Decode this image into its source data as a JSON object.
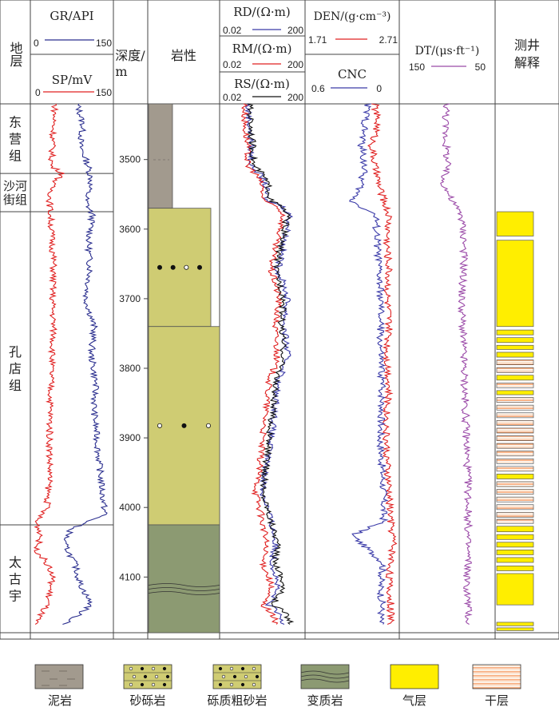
{
  "header": {
    "formation": "地层",
    "gr": {
      "label": "GR/API",
      "min": "0",
      "max": "150"
    },
    "sp": {
      "label": "SP/mV",
      "min": "0",
      "max": "150"
    },
    "depth": {
      "line1": "深度/",
      "line2": "m"
    },
    "lithology": "岩性",
    "rd": {
      "label": "RD/(Ω·m)",
      "min": "0.02",
      "max": "200"
    },
    "rm": {
      "label": "RM/(Ω·m)",
      "min": "0.02",
      "max": "200"
    },
    "rs": {
      "label": "RS/(Ω·m)",
      "min": "0.02",
      "max": "200"
    },
    "den": {
      "label": "DEN/(g·cm⁻³)",
      "min": "1.71",
      "max": "2.71"
    },
    "cnc": {
      "label": "CNC",
      "min": "0.6",
      "max": "0"
    },
    "dt": {
      "label": "DT/(μs·ft⁻¹)",
      "min": "150",
      "max": "50"
    },
    "interp": {
      "line1": "测井",
      "line2": "解释"
    }
  },
  "formations": [
    {
      "name": "东营组",
      "top": 3420,
      "base": 3520
    },
    {
      "name": "沙河街组",
      "top": 3520,
      "base": 3575
    },
    {
      "name": "孔店组",
      "top": 3575,
      "base": 4025
    },
    {
      "name": "太古宇",
      "top": 4025,
      "base": 4180
    }
  ],
  "depth_ticks": [
    "3500",
    "3600",
    "3700",
    "3800",
    "3900",
    "4000",
    "4100"
  ],
  "lithology": [
    {
      "type": "泥岩",
      "top": 3420,
      "base": 3570
    },
    {
      "type": "砂砾岩",
      "top": 3570,
      "base": 3740,
      "dots": [
        "filled",
        "filled",
        "hollow",
        "filled"
      ]
    },
    {
      "type": "砾质粗砂岩",
      "top": 3740,
      "base": 4025,
      "dots": [
        "hollow",
        "filled",
        "hollow"
      ]
    },
    {
      "type": "变质岩",
      "top": 4025,
      "base": 4180
    }
  ],
  "interpretation": [
    {
      "type": "气层",
      "top": 3575,
      "base": 3610
    },
    {
      "type": "气层",
      "top": 3616,
      "base": 3740
    },
    {
      "type": "气层",
      "top": 3745,
      "base": 3752
    },
    {
      "type": "气层",
      "top": 3756,
      "base": 3763
    },
    {
      "type": "气层",
      "top": 3767,
      "base": 3773
    },
    {
      "type": "气层",
      "top": 3777,
      "base": 3784
    },
    {
      "type": "干层",
      "top": 3788,
      "base": 3795
    },
    {
      "type": "干层",
      "top": 3799,
      "base": 3806
    },
    {
      "type": "气层",
      "top": 3810,
      "base": 3817
    },
    {
      "type": "干层",
      "top": 3821,
      "base": 3828
    },
    {
      "type": "气层",
      "top": 3832,
      "base": 3838
    },
    {
      "type": "干层",
      "top": 3842,
      "base": 3849
    },
    {
      "type": "干层",
      "top": 3853,
      "base": 3860
    },
    {
      "type": "干层",
      "top": 3864,
      "base": 3871
    },
    {
      "type": "干层",
      "top": 3875,
      "base": 3882
    },
    {
      "type": "干层",
      "top": 3886,
      "base": 3893
    },
    {
      "type": "干层",
      "top": 3897,
      "base": 3904
    },
    {
      "type": "干层",
      "top": 3908,
      "base": 3915
    },
    {
      "type": "干层",
      "top": 3919,
      "base": 3926
    },
    {
      "type": "干层",
      "top": 3930,
      "base": 3937
    },
    {
      "type": "干层",
      "top": 3941,
      "base": 3948
    },
    {
      "type": "气层",
      "top": 3952,
      "base": 3959
    },
    {
      "type": "干层",
      "top": 3963,
      "base": 3970
    },
    {
      "type": "干层",
      "top": 3974,
      "base": 3981
    },
    {
      "type": "干层",
      "top": 3985,
      "base": 3992
    },
    {
      "type": "干层",
      "top": 3996,
      "base": 4003
    },
    {
      "type": "干层",
      "top": 4007,
      "base": 4014
    },
    {
      "type": "干层",
      "top": 4017,
      "base": 4023
    },
    {
      "type": "气层",
      "top": 4027,
      "base": 4035
    },
    {
      "type": "气层",
      "top": 4039,
      "base": 4046
    },
    {
      "type": "气层",
      "top": 4050,
      "base": 4057
    },
    {
      "type": "气层",
      "top": 4061,
      "base": 4068
    },
    {
      "type": "气层",
      "top": 4072,
      "base": 4079
    },
    {
      "type": "气层",
      "top": 4084,
      "base": 4091
    },
    {
      "type": "气层",
      "top": 4095,
      "base": 4140
    },
    {
      "type": "气层",
      "top": 4165,
      "base": 4170
    },
    {
      "type": "气层",
      "top": 4173,
      "base": 4177
    }
  ],
  "legend": [
    {
      "label": "泥岩",
      "pattern": "mudstone"
    },
    {
      "label": "砂砾岩",
      "pattern": "sandy-conglomerate"
    },
    {
      "label": "砾质粗砂岩",
      "pattern": "pebbly-sandstone"
    },
    {
      "label": "变质岩",
      "pattern": "metamorphic"
    },
    {
      "label": "气层",
      "pattern": "gas"
    },
    {
      "label": "干层",
      "pattern": "dry"
    }
  ],
  "colors": {
    "gr": "#2b2f8f",
    "sp": "#e02020",
    "rd": "#3a3aa8",
    "rm": "#e02020",
    "rs": "#111111",
    "den": "#e02020",
    "cnc": "#3a3aa8",
    "dt": "#9b4aa8",
    "mudstone": "#a29a8e",
    "sandy": "#cfcc73",
    "metamorphic": "#8c9a72",
    "gas": "#ffee00",
    "dry": "#f6a06a"
  },
  "chart_data": {
    "type": "line",
    "depth_range": [
      3420,
      4180
    ],
    "curves": [
      {
        "name": "GR",
        "points": [
          [
            3420,
            85
          ],
          [
            3450,
            95
          ],
          [
            3480,
            90
          ],
          [
            3510,
            105
          ],
          [
            3530,
            110
          ],
          [
            3560,
            100
          ],
          [
            3580,
            112
          ],
          [
            3620,
            105
          ],
          [
            3660,
            108
          ],
          [
            3700,
            100
          ],
          [
            3740,
            115
          ],
          [
            3780,
            110
          ],
          [
            3820,
            118
          ],
          [
            3860,
            115
          ],
          [
            3900,
            120
          ],
          [
            3940,
            125
          ],
          [
            3980,
            130
          ],
          [
            4010,
            135
          ],
          [
            4030,
            75
          ],
          [
            4050,
            60
          ],
          [
            4080,
            80
          ],
          [
            4110,
            90
          ],
          [
            4140,
            110
          ],
          [
            4170,
            60
          ]
        ]
      },
      {
        "name": "SP",
        "points": [
          [
            3420,
            45
          ],
          [
            3450,
            42
          ],
          [
            3480,
            40
          ],
          [
            3510,
            38
          ],
          [
            3520,
            60
          ],
          [
            3535,
            40
          ],
          [
            3560,
            35
          ],
          [
            3600,
            38
          ],
          [
            3650,
            42
          ],
          [
            3700,
            40
          ],
          [
            3750,
            42
          ],
          [
            3800,
            38
          ],
          [
            3850,
            36
          ],
          [
            3900,
            35
          ],
          [
            3950,
            35
          ],
          [
            4000,
            30
          ],
          [
            4020,
            10
          ],
          [
            4040,
            20
          ],
          [
            4060,
            10
          ],
          [
            4080,
            30
          ],
          [
            4100,
            40
          ],
          [
            4140,
            30
          ],
          [
            4170,
            5
          ]
        ]
      },
      {
        "name": "RD",
        "points": [
          [
            3420,
            0.4
          ],
          [
            3450,
            0.5
          ],
          [
            3480,
            0.6
          ],
          [
            3510,
            0.6
          ],
          [
            3540,
            3
          ],
          [
            3560,
            3
          ],
          [
            3580,
            40
          ],
          [
            3620,
            20
          ],
          [
            3660,
            10
          ],
          [
            3700,
            30
          ],
          [
            3740,
            20
          ],
          [
            3780,
            30
          ],
          [
            3820,
            10
          ],
          [
            3860,
            8
          ],
          [
            3900,
            5
          ],
          [
            3940,
            3
          ],
          [
            3980,
            2
          ],
          [
            4020,
            5
          ],
          [
            4050,
            8
          ],
          [
            4080,
            6
          ],
          [
            4110,
            10
          ],
          [
            4140,
            4
          ],
          [
            4170,
            20
          ]
        ]
      },
      {
        "name": "RM",
        "points": [
          [
            3420,
            0.3
          ],
          [
            3450,
            0.3
          ],
          [
            3480,
            0.4
          ],
          [
            3510,
            0.4
          ],
          [
            3540,
            2
          ],
          [
            3560,
            2
          ],
          [
            3580,
            20
          ],
          [
            3620,
            8
          ],
          [
            3660,
            5
          ],
          [
            3700,
            12
          ],
          [
            3740,
            8
          ],
          [
            3780,
            10
          ],
          [
            3820,
            4
          ],
          [
            3860,
            3
          ],
          [
            3900,
            2
          ],
          [
            3940,
            1.5
          ],
          [
            3980,
            1
          ],
          [
            4020,
            2
          ],
          [
            4050,
            3
          ],
          [
            4080,
            2
          ],
          [
            4110,
            5
          ],
          [
            4140,
            2
          ],
          [
            4170,
            10
          ]
        ]
      },
      {
        "name": "RS",
        "points": [
          [
            3420,
            0.5
          ],
          [
            3450,
            0.6
          ],
          [
            3480,
            0.7
          ],
          [
            3510,
            0.8
          ],
          [
            3540,
            4
          ],
          [
            3560,
            5
          ],
          [
            3580,
            30
          ],
          [
            3620,
            15
          ],
          [
            3660,
            8
          ],
          [
            3700,
            20
          ],
          [
            3740,
            15
          ],
          [
            3780,
            20
          ],
          [
            3820,
            8
          ],
          [
            3860,
            6
          ],
          [
            3900,
            4
          ],
          [
            3940,
            3
          ],
          [
            3980,
            2
          ],
          [
            4020,
            5
          ],
          [
            4050,
            10
          ],
          [
            4080,
            8
          ],
          [
            4110,
            20
          ],
          [
            4140,
            5
          ],
          [
            4170,
            50
          ]
        ]
      },
      {
        "name": "DEN",
        "points": [
          [
            3420,
            2.45
          ],
          [
            3450,
            2.48
          ],
          [
            3480,
            2.42
          ],
          [
            3510,
            2.45
          ],
          [
            3540,
            2.5
          ],
          [
            3560,
            2.55
          ],
          [
            3580,
            2.6
          ],
          [
            3620,
            2.58
          ],
          [
            3660,
            2.6
          ],
          [
            3700,
            2.58
          ],
          [
            3740,
            2.6
          ],
          [
            3780,
            2.58
          ],
          [
            3820,
            2.6
          ],
          [
            3860,
            2.58
          ],
          [
            3900,
            2.57
          ],
          [
            3940,
            2.58
          ],
          [
            3980,
            2.6
          ],
          [
            4020,
            2.62
          ],
          [
            4050,
            2.65
          ],
          [
            4080,
            2.62
          ],
          [
            4110,
            2.6
          ],
          [
            4140,
            2.62
          ],
          [
            4170,
            2.62
          ]
        ]
      },
      {
        "name": "CNC",
        "points": [
          [
            3420,
            0.2
          ],
          [
            3450,
            0.22
          ],
          [
            3480,
            0.24
          ],
          [
            3510,
            0.22
          ],
          [
            3540,
            0.25
          ],
          [
            3560,
            0.3
          ],
          [
            3580,
            0.15
          ],
          [
            3620,
            0.14
          ],
          [
            3660,
            0.13
          ],
          [
            3700,
            0.12
          ],
          [
            3740,
            0.12
          ],
          [
            3780,
            0.12
          ],
          [
            3820,
            0.11
          ],
          [
            3860,
            0.11
          ],
          [
            3900,
            0.12
          ],
          [
            3940,
            0.11
          ],
          [
            3980,
            0.1
          ],
          [
            4020,
            0.1
          ],
          [
            4040,
            0.3
          ],
          [
            4060,
            0.2
          ],
          [
            4080,
            0.1
          ],
          [
            4110,
            0.12
          ],
          [
            4140,
            0.11
          ],
          [
            4170,
            0.12
          ]
        ]
      },
      {
        "name": "DT",
        "points": [
          [
            3420,
            100
          ],
          [
            3450,
            102
          ],
          [
            3480,
            101
          ],
          [
            3510,
            100
          ],
          [
            3530,
            105
          ],
          [
            3560,
            95
          ],
          [
            3580,
            85
          ],
          [
            3620,
            82
          ],
          [
            3660,
            83
          ],
          [
            3700,
            85
          ],
          [
            3740,
            84
          ],
          [
            3780,
            83
          ],
          [
            3820,
            82
          ],
          [
            3860,
            81
          ],
          [
            3900,
            80
          ],
          [
            3940,
            79
          ],
          [
            3980,
            78
          ],
          [
            4020,
            78
          ],
          [
            4050,
            79
          ],
          [
            4080,
            78
          ],
          [
            4110,
            80
          ],
          [
            4140,
            78
          ],
          [
            4170,
            78
          ]
        ]
      }
    ]
  }
}
